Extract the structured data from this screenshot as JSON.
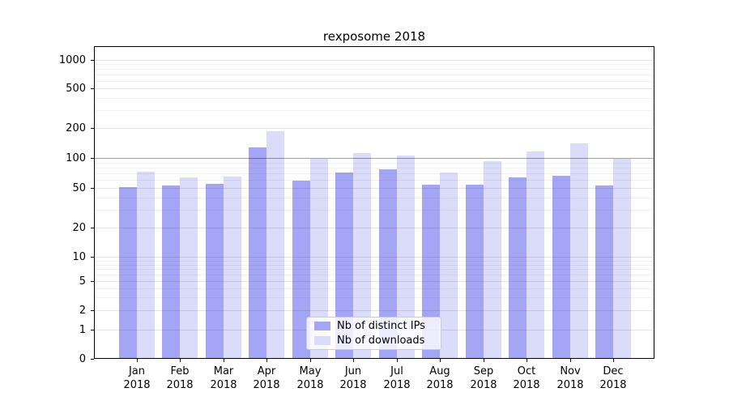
{
  "chart_data": {
    "type": "bar",
    "title": "rexposome 2018",
    "yscale": "symlog",
    "ylim": [
      0,
      1000
    ],
    "yticks": [
      1000,
      500,
      200,
      100,
      50,
      20,
      10,
      5,
      2,
      1,
      0
    ],
    "grid": "on",
    "legend_position": "lower-center",
    "categories": [
      "Jan",
      "Feb",
      "Mar",
      "Apr",
      "May",
      "Jun",
      "Jul",
      "Aug",
      "Sep",
      "Oct",
      "Nov",
      "Dec"
    ],
    "x_year_label": "2018",
    "series": [
      {
        "name": "Nb of distinct IPs",
        "color": "#a5a5f6",
        "values": [
          51,
          53,
          55,
          128,
          59,
          72,
          77,
          54,
          54,
          64,
          66,
          53
        ]
      },
      {
        "name": "Nb of downloads",
        "color": "#dbdbfa",
        "values": [
          73,
          64,
          65,
          186,
          99,
          112,
          105,
          72,
          93,
          117,
          139,
          99
        ]
      }
    ]
  }
}
